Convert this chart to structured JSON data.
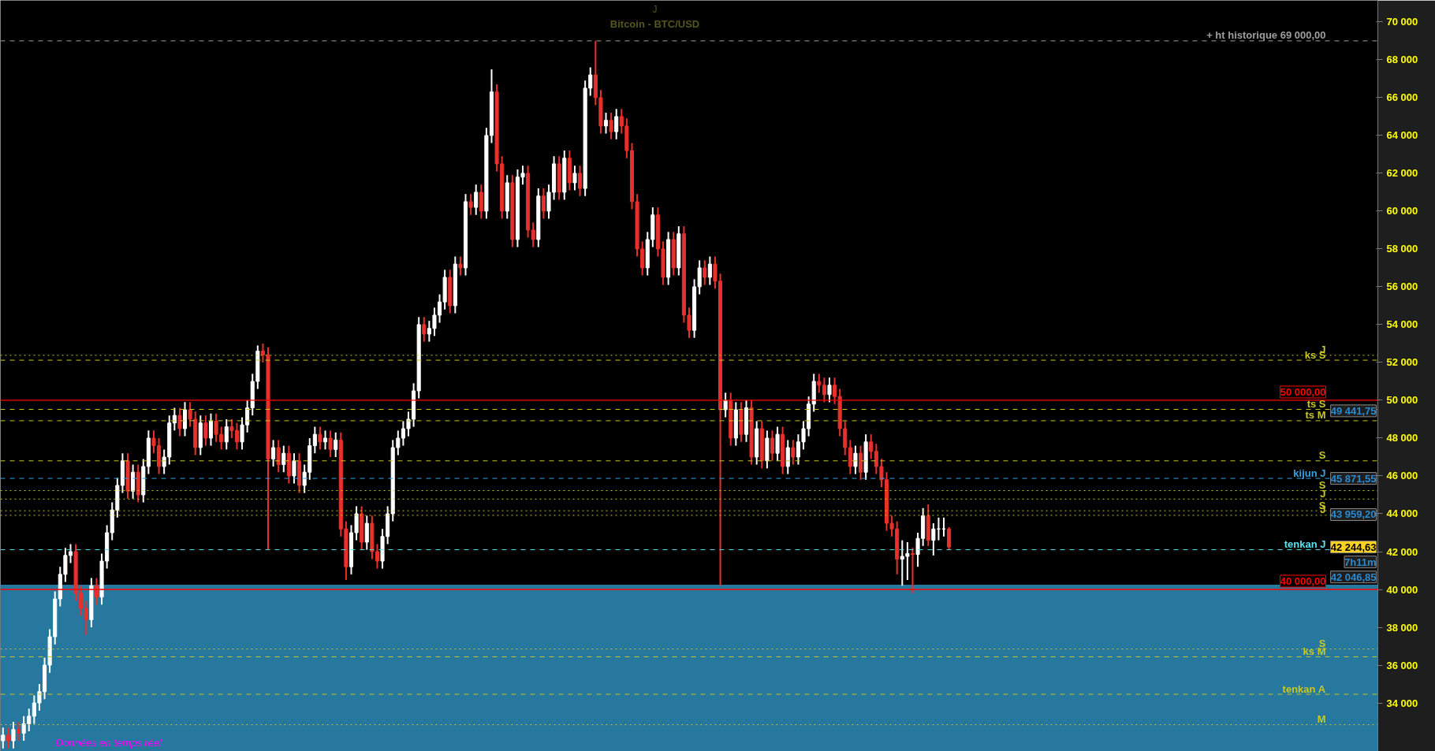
{
  "chart_data": {
    "type": "candlestick",
    "title": "Bitcoin - BTC/USD",
    "subtitle": "J",
    "categories": [
      null,
      null,
      null,
      null,
      null,
      null,
      null,
      null,
      null,
      null,
      null,
      null,
      null,
      null,
      null,
      null,
      null,
      null,
      null,
      null,
      null,
      null,
      null,
      null,
      null,
      null,
      null,
      null,
      null,
      null,
      null,
      null,
      null,
      null,
      null,
      null,
      null,
      null,
      null,
      null,
      null,
      null,
      null,
      null,
      null,
      null,
      null,
      null,
      null,
      null,
      null,
      null,
      null,
      null,
      null,
      null,
      null,
      null,
      null,
      null,
      null,
      null,
      null,
      null,
      null,
      null,
      null,
      null,
      null,
      null,
      null,
      null,
      null,
      null,
      null,
      null,
      null,
      null,
      null,
      null,
      null,
      null,
      null,
      null,
      null,
      null,
      null,
      null,
      null,
      null,
      null,
      null,
      null,
      null,
      null,
      null,
      null,
      null,
      null,
      null,
      null,
      null,
      null,
      null,
      null,
      null,
      null,
      null,
      null,
      null,
      null,
      null,
      null,
      null,
      null,
      null,
      null,
      null,
      null,
      null,
      null,
      null,
      null,
      null,
      null,
      null,
      null,
      null,
      null,
      null,
      null,
      null,
      null,
      null,
      null,
      null,
      null,
      null,
      null,
      null,
      null,
      null,
      null,
      null,
      null,
      null,
      null,
      null,
      null,
      null,
      null,
      null,
      null,
      null,
      null,
      null,
      null,
      null,
      null,
      null,
      null,
      null,
      null,
      null,
      null,
      null,
      null,
      null,
      null,
      null,
      null,
      null,
      null,
      null,
      null,
      null,
      null,
      null,
      null,
      null,
      null,
      null,
      null,
      null,
      null,
      null,
      null,
      null,
      null,
      null,
      null,
      null,
      null,
      null,
      null,
      null,
      null,
      null,
      null,
      null,
      null,
      null,
      null,
      null,
      null,
      null,
      null,
      null,
      null,
      null,
      null,
      null,
      null,
      null,
      null,
      null,
      null,
      null,
      null,
      null,
      null,
      null,
      null,
      null,
      null,
      null,
      null,
      null,
      null,
      null,
      null,
      null,
      null,
      null,
      null,
      null,
      null,
      null,
      null,
      null,
      null,
      null,
      null,
      null,
      null,
      null,
      null,
      null,
      null,
      null,
      null,
      null,
      null,
      null,
      null,
      null,
      null,
      null,
      null,
      null,
      null,
      null,
      null,
      null,
      null
    ],
    "colors": [
      "#ffffff",
      "#e8302c",
      "#ffffff",
      "#e8302c",
      "#ffffff",
      "#ffffff",
      "#ffffff",
      "#ffffff",
      "#ffffff",
      "#ffffff",
      "#ffffff",
      "#ffffff",
      "#ffffff",
      "#ffffff",
      "#e8302c",
      "#e8302c",
      "#e8302c",
      "#ffffff",
      "#e8302c",
      "#ffffff",
      "#ffffff",
      "#ffffff",
      "#ffffff",
      "#ffffff",
      "#e8302c",
      "#ffffff",
      "#e8302c",
      "#ffffff",
      "#ffffff",
      "#e8302c",
      "#e8302c",
      "#ffffff",
      "#ffffff",
      "#ffffff",
      "#e8302c",
      "#ffffff",
      "#e8302c",
      "#e8302c",
      "#ffffff",
      "#e8302c",
      "#ffffff",
      "#e8302c",
      "#e8302c",
      "#ffffff",
      "#e8302c",
      "#e8302c",
      "#ffffff",
      "#ffffff",
      "#ffffff",
      "#ffffff",
      "#e8302c",
      "#e8302c",
      "#ffffff",
      "#e8302c",
      "#ffffff",
      "#e8302c",
      "#ffffff",
      "#e8302c",
      "#ffffff",
      "#ffffff",
      "#ffffff",
      "#e8302c",
      "#ffffff",
      "#e8302c",
      "#ffffff",
      "#e8302c",
      "#e8302c",
      "#ffffff",
      "#ffffff",
      "#e8302c",
      "#ffffff",
      "#e8302c",
      "#e8302c",
      "#ffffff",
      "#ffffff",
      "#ffffff",
      "#ffffff",
      "#ffffff",
      "#ffffff",
      "#ffffff",
      "#ffffff",
      "#e8302c",
      "#ffffff",
      "#ffffff",
      "#ffffff",
      "#ffffff",
      "#e8302c",
      "#ffffff",
      "#e8302c",
      "#ffffff",
      "#e8302c",
      "#ffffff",
      "#e8302c",
      "#ffffff",
      "#ffffff",
      "#e8302c",
      "#e8302c",
      "#ffffff",
      "#e8302c",
      "#ffffff",
      "#ffffff",
      "#e8302c",
      "#e8302c",
      "#ffffff",
      "#e8302c",
      "#ffffff",
      "#ffffff",
      "#e8302c",
      "#ffffff",
      "#e8302c",
      "#ffffff",
      "#e8302c",
      "#ffffff",
      "#ffffff",
      "#e8302c",
      "#e8302c",
      "#ffffff",
      "#e8302c",
      "#ffffff",
      "#e8302c",
      "#e8302c",
      "#e8302c",
      "#e8302c",
      "#e8302c",
      "#ffffff",
      "#ffffff",
      "#e8302c",
      "#e8302c",
      "#ffffff",
      "#e8302c",
      "#ffffff",
      "#e8302c",
      "#e8302c",
      "#ffffff",
      "#ffffff",
      "#e8302c",
      "#ffffff",
      "#e8302c",
      "#e8302c",
      "#ffffff",
      "#e8302c",
      "#ffffff",
      "#e8302c",
      "#ffffff",
      "#e8302c",
      "#ffffff",
      "#e8302c",
      "#ffffff",
      "#e8302c",
      "#ffffff",
      "#e8302c",
      "#ffffff",
      "#e8302c",
      "#ffffff",
      "#ffffff",
      "#ffffff",
      "#ffffff",
      "#e8302c",
      "#e8302c",
      "#ffffff",
      "#e8302c",
      "#e8302c",
      "#e8302c",
      "#e8302c",
      "#ffffff",
      "#e8302c",
      "#ffffff",
      "#e8302c",
      "#e8302c",
      "#e8302c",
      "#e8302c",
      "#e8302c",
      "#e8302c",
      "#ffffff",
      "#ffffff",
      "#e8302c",
      "#ffffff",
      "#ffffff",
      "#e8302c",
      "#ffffff",
      "#ffffff",
      "#ffffff",
      "#e8302c",
      null,
      null,
      null,
      null,
      null,
      null,
      null,
      null,
      null,
      null,
      null,
      null,
      null,
      null,
      null,
      null,
      null,
      null,
      null,
      null,
      null,
      null,
      null,
      null,
      null,
      null,
      null,
      null,
      null,
      null,
      null,
      null,
      null,
      null,
      null,
      null,
      null,
      null,
      null,
      null,
      null,
      null,
      null,
      null,
      null,
      null,
      null,
      null,
      null,
      null,
      null,
      null,
      null,
      null,
      null,
      null,
      null,
      null,
      null,
      null,
      null,
      null,
      null,
      null,
      null,
      null,
      null,
      null,
      null,
      null,
      null,
      null,
      null,
      null,
      null,
      null,
      null,
      null,
      null,
      null,
      null,
      null
    ],
    "ohlc": [
      [
        32000,
        32700,
        31600,
        32300
      ],
      [
        32300,
        32700,
        31600,
        32000
      ],
      [
        32000,
        33000,
        31600,
        32600
      ],
      [
        32600,
        33000,
        32000,
        32400
      ],
      [
        32400,
        33300,
        32000,
        32900
      ],
      [
        32900,
        33700,
        32500,
        33300
      ],
      [
        33300,
        34400,
        32900,
        34000
      ],
      [
        34000,
        35000,
        33600,
        34600
      ],
      [
        34600,
        36400,
        34200,
        36000
      ],
      [
        36000,
        37900,
        35600,
        37500
      ],
      [
        37500,
        39900,
        37100,
        39500
      ],
      [
        39500,
        41200,
        39100,
        40800
      ],
      [
        40800,
        42200,
        40400,
        41800
      ],
      [
        41800,
        42400,
        41400,
        42000
      ],
      [
        42000,
        42400,
        39400,
        39800
      ],
      [
        39800,
        40200,
        38600,
        39000
      ],
      [
        39000,
        39400,
        37600,
        38400
      ],
      [
        38400,
        40600,
        38000,
        40200
      ],
      [
        40200,
        40600,
        39200,
        39600
      ],
      [
        39600,
        41900,
        39200,
        41500
      ],
      [
        41500,
        43400,
        41100,
        43000
      ],
      [
        43000,
        44600,
        42600,
        44200
      ],
      [
        44200,
        45900,
        43800,
        45500
      ],
      [
        45500,
        47200,
        45100,
        46800
      ],
      [
        46800,
        47200,
        44800,
        45200
      ],
      [
        45200,
        46600,
        44800,
        46200
      ],
      [
        46200,
        46600,
        44600,
        45000
      ],
      [
        45000,
        46900,
        44600,
        46500
      ],
      [
        46500,
        48400,
        46100,
        48000
      ],
      [
        48000,
        48400,
        47200,
        47600
      ],
      [
        47600,
        48000,
        46100,
        46500
      ],
      [
        46500,
        47400,
        46100,
        47000
      ],
      [
        47000,
        49200,
        46600,
        48800
      ],
      [
        48800,
        49600,
        48400,
        49200
      ],
      [
        49200,
        49600,
        48100,
        48500
      ],
      [
        48500,
        49900,
        48100,
        49500
      ],
      [
        49500,
        49900,
        48600,
        49000
      ],
      [
        49000,
        49400,
        47100,
        47500
      ],
      [
        47500,
        49200,
        47100,
        48800
      ],
      [
        48800,
        49200,
        47600,
        48000
      ],
      [
        48000,
        49300,
        47600,
        48900
      ],
      [
        48900,
        49300,
        47800,
        48200
      ],
      [
        48200,
        48600,
        47400,
        47800
      ],
      [
        47800,
        49000,
        47400,
        48600
      ],
      [
        48600,
        49000,
        48000,
        48400
      ],
      [
        48400,
        48800,
        47400,
        47800
      ],
      [
        47800,
        49100,
        47400,
        48700
      ],
      [
        48700,
        50000,
        48300,
        49600
      ],
      [
        49600,
        51400,
        49200,
        51000
      ],
      [
        51000,
        52900,
        50600,
        52600
      ],
      [
        52600,
        53000,
        52000,
        52400
      ],
      [
        52400,
        52800,
        42100,
        46900
      ],
      [
        46900,
        47900,
        46500,
        47500
      ],
      [
        47500,
        47900,
        46200,
        46600
      ],
      [
        46600,
        47600,
        46200,
        47200
      ],
      [
        47200,
        47600,
        45600,
        46000
      ],
      [
        46000,
        47200,
        45600,
        46800
      ],
      [
        46800,
        47200,
        45100,
        45500
      ],
      [
        45500,
        46600,
        45100,
        46200
      ],
      [
        46200,
        48000,
        45800,
        47600
      ],
      [
        47600,
        48600,
        47200,
        48200
      ],
      [
        48200,
        48600,
        47400,
        47800
      ],
      [
        47800,
        48400,
        47400,
        48000
      ],
      [
        48000,
        48400,
        47000,
        47400
      ],
      [
        47400,
        48300,
        47000,
        47900
      ],
      [
        47900,
        48300,
        42800,
        43200
      ],
      [
        43200,
        43600,
        40500,
        41200
      ],
      [
        41200,
        43400,
        40800,
        43000
      ],
      [
        43000,
        44400,
        42600,
        44000
      ],
      [
        44000,
        44400,
        42100,
        42500
      ],
      [
        42500,
        43900,
        42100,
        43500
      ],
      [
        43500,
        43900,
        41600,
        42000
      ],
      [
        42000,
        42400,
        41100,
        41500
      ],
      [
        41500,
        43200,
        41100,
        42800
      ],
      [
        42800,
        44400,
        42400,
        44000
      ],
      [
        44000,
        47900,
        43600,
        47500
      ],
      [
        47500,
        48400,
        47100,
        48000
      ],
      [
        48000,
        48900,
        47600,
        48500
      ],
      [
        48500,
        49400,
        48100,
        49000
      ],
      [
        49000,
        50900,
        48600,
        50500
      ],
      [
        50500,
        54400,
        50100,
        54000
      ],
      [
        54000,
        54400,
        53100,
        53500
      ],
      [
        53500,
        54200,
        53100,
        53800
      ],
      [
        53800,
        54900,
        53400,
        54500
      ],
      [
        54500,
        55600,
        54100,
        55200
      ],
      [
        55200,
        56900,
        54800,
        56500
      ],
      [
        56500,
        56900,
        54600,
        55000
      ],
      [
        55000,
        57600,
        54600,
        57200
      ],
      [
        57200,
        57600,
        56600,
        57000
      ],
      [
        57000,
        60900,
        56600,
        60500
      ],
      [
        60500,
        60900,
        59800,
        60200
      ],
      [
        60200,
        61400,
        59800,
        61000
      ],
      [
        61000,
        61400,
        59600,
        60000
      ],
      [
        60000,
        64400,
        59600,
        64000
      ],
      [
        64000,
        67500,
        63600,
        66300
      ],
      [
        66300,
        66700,
        62100,
        62500
      ],
      [
        62500,
        62900,
        59600,
        60000
      ],
      [
        60000,
        61900,
        59600,
        61500
      ],
      [
        61500,
        61900,
        58100,
        58500
      ],
      [
        58500,
        62200,
        58100,
        61800
      ],
      [
        61800,
        62400,
        61400,
        62000
      ],
      [
        62000,
        62400,
        58600,
        59000
      ],
      [
        59000,
        59400,
        58100,
        58500
      ],
      [
        58500,
        61200,
        58100,
        60800
      ],
      [
        60800,
        61200,
        59600,
        60000
      ],
      [
        60000,
        61400,
        59600,
        61000
      ],
      [
        61000,
        62900,
        60600,
        62500
      ],
      [
        62500,
        62900,
        60600,
        61000
      ],
      [
        61000,
        63200,
        60600,
        62800
      ],
      [
        62800,
        63200,
        61100,
        61500
      ],
      [
        61500,
        62400,
        61100,
        62000
      ],
      [
        62000,
        62400,
        60800,
        61200
      ],
      [
        61200,
        66900,
        60800,
        66500
      ],
      [
        66500,
        67600,
        66100,
        67200
      ],
      [
        67200,
        69000,
        65600,
        66000
      ],
      [
        66000,
        66400,
        64100,
        64500
      ],
      [
        64500,
        65200,
        64100,
        64800
      ],
      [
        64800,
        65200,
        63800,
        64200
      ],
      [
        64200,
        65400,
        63800,
        65000
      ],
      [
        65000,
        65400,
        64100,
        64500
      ],
      [
        64500,
        64900,
        62800,
        63200
      ],
      [
        63200,
        63600,
        60100,
        60500
      ],
      [
        60500,
        60900,
        57600,
        58000
      ],
      [
        58000,
        58400,
        56600,
        57000
      ],
      [
        57000,
        58900,
        56600,
        58500
      ],
      [
        58500,
        60200,
        58100,
        59800
      ],
      [
        59800,
        60200,
        57600,
        58000
      ],
      [
        58000,
        58400,
        56100,
        56500
      ],
      [
        56500,
        58900,
        56100,
        58500
      ],
      [
        58500,
        58900,
        56600,
        57000
      ],
      [
        57000,
        59200,
        56600,
        58800
      ],
      [
        58800,
        59200,
        54100,
        54500
      ],
      [
        54500,
        54900,
        53300,
        53700
      ],
      [
        53700,
        56400,
        53300,
        56000
      ],
      [
        56000,
        57400,
        55600,
        57000
      ],
      [
        57000,
        57400,
        56100,
        56500
      ],
      [
        56500,
        57600,
        56100,
        57200
      ],
      [
        57200,
        57600,
        55900,
        56300
      ],
      [
        56300,
        56700,
        40200,
        49500
      ],
      [
        49500,
        50400,
        49100,
        50000
      ],
      [
        50000,
        50400,
        47600,
        48000
      ],
      [
        48000,
        49900,
        47600,
        49500
      ],
      [
        49500,
        49900,
        47800,
        48200
      ],
      [
        48200,
        50000,
        47800,
        49600
      ],
      [
        49600,
        50000,
        46600,
        47000
      ],
      [
        47000,
        48900,
        46600,
        48500
      ],
      [
        48500,
        48900,
        46400,
        46800
      ],
      [
        46800,
        48400,
        46400,
        48000
      ],
      [
        48000,
        48400,
        46800,
        47200
      ],
      [
        47200,
        48600,
        46800,
        48200
      ],
      [
        48200,
        48600,
        46100,
        46500
      ],
      [
        46500,
        47900,
        46100,
        47500
      ],
      [
        47500,
        47900,
        46600,
        47000
      ],
      [
        47000,
        48200,
        46600,
        47800
      ],
      [
        47800,
        48900,
        47400,
        48500
      ],
      [
        48500,
        50200,
        48100,
        49800
      ],
      [
        49800,
        51400,
        49400,
        51000
      ],
      [
        51000,
        51400,
        50400,
        50800
      ],
      [
        50800,
        51200,
        49900,
        50300
      ],
      [
        50300,
        51200,
        49900,
        50800
      ],
      [
        50800,
        51200,
        49800,
        50200
      ],
      [
        50200,
        50600,
        48100,
        48500
      ],
      [
        48500,
        48900,
        47100,
        47500
      ],
      [
        47500,
        47900,
        46100,
        46500
      ],
      [
        46500,
        47600,
        46100,
        47200
      ],
      [
        47200,
        47600,
        45800,
        46200
      ],
      [
        46200,
        48200,
        45800,
        47800
      ],
      [
        47800,
        48200,
        46900,
        47300
      ],
      [
        47300,
        47700,
        46100,
        46500
      ],
      [
        46500,
        46900,
        45400,
        45800
      ],
      [
        45800,
        46200,
        43100,
        43500
      ],
      [
        43500,
        43900,
        42800,
        43200
      ],
      [
        43200,
        43600,
        40800,
        41600
      ],
      [
        41600,
        42600,
        40200,
        41750
      ],
      [
        41750,
        42500,
        40500,
        41900
      ],
      [
        41900,
        42200,
        39800,
        41850
      ],
      [
        41850,
        43000,
        41200,
        42700
      ],
      [
        42700,
        44300,
        42300,
        43900
      ],
      [
        43900,
        44500,
        42300,
        42600
      ],
      [
        42600,
        43500,
        41800,
        43200
      ],
      [
        43200,
        43800,
        42600,
        43200
      ],
      [
        43200,
        43800,
        42800,
        43200
      ],
      [
        43200,
        43300,
        42100,
        42244.63
      ],
      null,
      null,
      null,
      null,
      null,
      null,
      null,
      null,
      null,
      null,
      null,
      null,
      null,
      null,
      null,
      null,
      null,
      null,
      null,
      null,
      null,
      null,
      null,
      null,
      null,
      null,
      null,
      null,
      null,
      null,
      null,
      null,
      null,
      null,
      null,
      null,
      null,
      null,
      null,
      null,
      null,
      null,
      null,
      null,
      null,
      null,
      null,
      null,
      null,
      null,
      null,
      null,
      null,
      null,
      null,
      null,
      null,
      null,
      null,
      null,
      null,
      null,
      null,
      null,
      null,
      null,
      null,
      null,
      null,
      null,
      null,
      null,
      null,
      null,
      null,
      null,
      null,
      null,
      null,
      null,
      null,
      null
    ],
    "ylim": [
      31440,
      71140
    ],
    "yticks": [
      {
        "value": 34000,
        "label": "34 000"
      },
      {
        "value": 36000,
        "label": "36 000"
      },
      {
        "value": 38000,
        "label": "38 000"
      },
      {
        "value": 40000,
        "label": "40 000"
      },
      {
        "value": 42000,
        "label": "42 000"
      },
      {
        "value": 44000,
        "label": "44 000"
      },
      {
        "value": 46000,
        "label": "46 000"
      },
      {
        "value": 48000,
        "label": "48 000"
      },
      {
        "value": 50000,
        "label": "50 000"
      },
      {
        "value": 52000,
        "label": "52 000"
      },
      {
        "value": 54000,
        "label": "54 000"
      },
      {
        "value": 56000,
        "label": "56 000"
      },
      {
        "value": 58000,
        "label": "58 000"
      },
      {
        "value": 60000,
        "label": "60 000"
      },
      {
        "value": 62000,
        "label": "62 000"
      },
      {
        "value": 64000,
        "label": "64 000"
      },
      {
        "value": 66000,
        "label": "66 000"
      },
      {
        "value": 68000,
        "label": "68 000"
      },
      {
        "value": 70000,
        "label": "70 000"
      }
    ],
    "tick_labels": "y",
    "bands": [
      {
        "axis": "y",
        "from": 31440,
        "to": 40250,
        "color": "#27789e"
      }
    ],
    "ref_lines": [
      {
        "axis": "y",
        "value": 69000,
        "label": "+ ht historique 69 000,00",
        "color": "#9e9e9e",
        "line_style": "dashed"
      },
      {
        "axis": "y",
        "value": 52380,
        "label": "J",
        "color": "#c8c820",
        "line_style": "dotted"
      },
      {
        "axis": "y",
        "value": 52120,
        "label": "ks S",
        "color": "#c8c820",
        "line_style": "dashed"
      },
      {
        "axis": "y",
        "value": 50000,
        "label": "50 000,00",
        "color": "#ff0000",
        "line_style": "solid"
      },
      {
        "axis": "y",
        "value": 49520,
        "label": "ts S",
        "color": "#c8c820",
        "line_style": "dashed"
      },
      {
        "axis": "y",
        "value": 48920,
        "label": "ts M",
        "color": "#c8c820",
        "line_style": "dashed"
      },
      {
        "axis": "y",
        "value": 46800,
        "label": "S",
        "color": "#c8c820",
        "line_style": "dashed"
      },
      {
        "axis": "y",
        "value": 45871.55,
        "label": "kijun J",
        "color": "#3aa0e0",
        "line_style": "dashed"
      },
      {
        "axis": "y",
        "value": 45230,
        "label": "S",
        "color": "#c8c820",
        "line_style": "dotted"
      },
      {
        "axis": "y",
        "value": 44780,
        "label": "J",
        "color": "#c8c820",
        "line_style": "dotted"
      },
      {
        "axis": "y",
        "value": 44160,
        "label": "S",
        "color": "#c8c820",
        "line_style": "dotted"
      },
      {
        "axis": "y",
        "value": 43920,
        "label": "J",
        "color": "#c8c820",
        "line_style": "dotted"
      },
      {
        "axis": "y",
        "value": 42100,
        "label": "tenkan J",
        "color": "#5ce0f0",
        "line_style": "dashed"
      },
      {
        "axis": "y",
        "value": 40000,
        "label": "40 000,00",
        "color": "#ff0000",
        "line_style": "solid"
      },
      {
        "axis": "y",
        "value": 36850,
        "label": "S",
        "color": "#c8c820",
        "line_style": "dotted"
      },
      {
        "axis": "y",
        "value": 36440,
        "label": "ks M",
        "color": "#c8c820",
        "line_style": "dashed"
      },
      {
        "axis": "y",
        "value": 34460,
        "label": "tenkan A",
        "color": "#c8c820",
        "line_style": "dashed"
      },
      {
        "axis": "y",
        "value": 32850,
        "label": "M",
        "color": "#c8c820",
        "line_style": "dotted"
      }
    ],
    "annotations": [
      "Données en temps réel",
      {
        "text": "49 441,75",
        "y": 49441.75
      },
      {
        "text": "45 871,55",
        "y": 45871.55
      },
      {
        "text": "43 959,20",
        "y": 43959.2
      },
      {
        "text": "42 244,63",
        "y": 42244.63
      },
      "7h11m",
      {
        "text": "42 046,85",
        "y": 42046.85
      }
    ]
  }
}
